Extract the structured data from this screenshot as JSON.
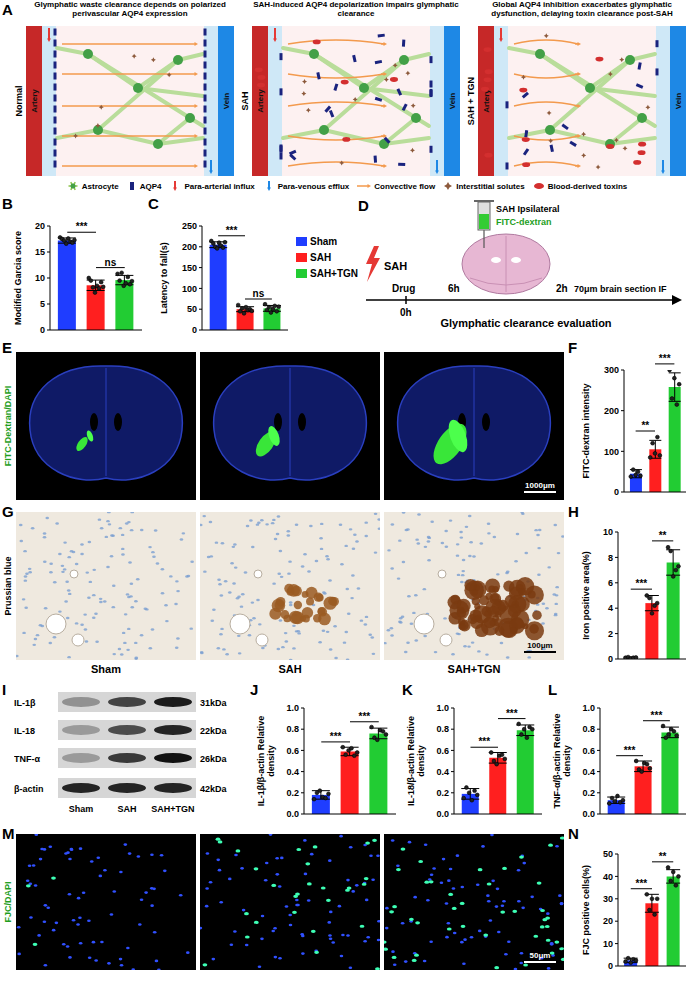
{
  "chart_data": [
    {
      "panel": "B",
      "type": "bar",
      "y_label": "Modified Garcia score",
      "categories": [
        "Sham",
        "SAH",
        "SAH+TGN"
      ],
      "colors": [
        "#1f3dff",
        "#ff1f1f",
        "#22cc33"
      ],
      "values": [
        17.2,
        8.6,
        9.6
      ],
      "errors": [
        0.5,
        1.0,
        0.9
      ],
      "points": [
        [
          17.8,
          17.5,
          17.2,
          16.6,
          17.6,
          17.0,
          16.8,
          17.3
        ],
        [
          10.0,
          9.5,
          8.2,
          7.2,
          8.5,
          8.0,
          9.2,
          8.3
        ],
        [
          10.8,
          9.5,
          11.0,
          8.5,
          9.0,
          10.2,
          8.8,
          9.4
        ]
      ],
      "significance": [
        {
          "groups": [
            "Sham",
            "SAH"
          ],
          "label": "***"
        },
        {
          "groups": [
            "SAH",
            "SAH+TGN"
          ],
          "label": "ns"
        }
      ],
      "ylim": [
        0,
        20
      ],
      "yticks": [
        0,
        5,
        10,
        15,
        20
      ],
      "tick_labels": "y"
    },
    {
      "panel": "C",
      "type": "bar",
      "y_label": "Latency to fall(s)",
      "categories": [
        "Sham",
        "SAH",
        "SAH+TGN"
      ],
      "colors": [
        "#1f3dff",
        "#ff1f1f",
        "#22cc33"
      ],
      "values": [
        205,
        50,
        52
      ],
      "errors": [
        7,
        6,
        7
      ],
      "points": [
        [
          214,
          208,
          200,
          196,
          210,
          203,
          198,
          211
        ],
        [
          60,
          45,
          52,
          40,
          55,
          48,
          50,
          46
        ],
        [
          62,
          48,
          55,
          42,
          50,
          58,
          45,
          56
        ]
      ],
      "significance": [
        {
          "groups": [
            "Sham",
            "SAH"
          ],
          "label": "***"
        },
        {
          "groups": [
            "SAH",
            "SAH+TGN"
          ],
          "label": "ns"
        }
      ],
      "ylim": [
        0,
        250
      ],
      "yticks": [
        0,
        50,
        100,
        150,
        200,
        250
      ],
      "tick_labels": "y",
      "legend": "right"
    },
    {
      "panel": "F",
      "type": "bar",
      "y_label": "FITC-dextran intensity",
      "categories": [
        "Sham",
        "SAH",
        "SAH+TGN"
      ],
      "colors": [
        "#1f3dff",
        "#ff1f1f",
        "#22cc33"
      ],
      "values": [
        45,
        105,
        258
      ],
      "errors": [
        10,
        22,
        35
      ],
      "points": [
        [
          38,
          55,
          42,
          50,
          40
        ],
        [
          85,
          120,
          95,
          135,
          90
        ],
        [
          300,
          230,
          280,
          215,
          265
        ]
      ],
      "significance": [
        {
          "groups": [
            "Sham",
            "SAH"
          ],
          "label": "**"
        },
        {
          "groups": [
            "SAH",
            "SAH+TGN"
          ],
          "label": "***"
        }
      ],
      "ylim": [
        0,
        300
      ],
      "yticks": [
        0,
        100,
        200,
        300
      ],
      "tick_labels": "y"
    },
    {
      "panel": "H",
      "type": "bar",
      "y_label": "Iron positive area(%)",
      "categories": [
        "Sham",
        "SAH",
        "SAH+TGN"
      ],
      "colors": [
        "#1f3dff",
        "#ff1f1f",
        "#22cc33"
      ],
      "values": [
        0.1,
        4.4,
        7.6
      ],
      "errors": [
        0.05,
        0.6,
        1.0
      ],
      "points": [
        [
          0.1,
          0.15,
          0.05,
          0.1,
          0.12
        ],
        [
          5.0,
          4.8,
          3.6,
          4.2,
          4.4
        ],
        [
          8.8,
          8.5,
          6.5,
          7.0,
          7.3
        ]
      ],
      "significance": [
        {
          "groups": [
            "Sham",
            "SAH"
          ],
          "label": "***"
        },
        {
          "groups": [
            "SAH",
            "SAH+TGN"
          ],
          "label": "**"
        }
      ],
      "ylim": [
        0,
        10
      ],
      "yticks": [
        0,
        2,
        4,
        6,
        8,
        10
      ],
      "tick_labels": "y"
    },
    {
      "panel": "J",
      "type": "bar",
      "y_label": "IL-1β/β-actin Relative density",
      "categories": [
        "Sham",
        "SAH",
        "SAH+TGN"
      ],
      "colors": [
        "#1f3dff",
        "#ff1f1f",
        "#22cc33"
      ],
      "values": [
        0.18,
        0.59,
        0.76
      ],
      "errors": [
        0.04,
        0.04,
        0.05
      ],
      "points": [
        [
          0.14,
          0.2,
          0.22,
          0.16,
          0.15,
          0.19
        ],
        [
          0.63,
          0.56,
          0.6,
          0.62,
          0.55,
          0.58
        ],
        [
          0.82,
          0.72,
          0.7,
          0.79,
          0.78,
          0.75
        ]
      ],
      "significance": [
        {
          "groups": [
            "Sham",
            "SAH"
          ],
          "label": "***"
        },
        {
          "groups": [
            "SAH",
            "SAH+TGN"
          ],
          "label": "***"
        }
      ],
      "ylim": [
        0,
        1
      ],
      "yticks": [
        {
          "value": 0,
          "label": "0.0"
        },
        0.2,
        0.4,
        0.6,
        0.8,
        {
          "value": 1,
          "label": "1.0"
        }
      ],
      "tick_labels": "y"
    },
    {
      "panel": "K",
      "type": "bar",
      "y_label": "IL-18/β-actin Relative density",
      "categories": [
        "Sham",
        "SAH",
        "SAH+TGN"
      ],
      "colors": [
        "#1f3dff",
        "#ff1f1f",
        "#22cc33"
      ],
      "values": [
        0.19,
        0.53,
        0.79
      ],
      "errors": [
        0.05,
        0.05,
        0.05
      ],
      "points": [
        [
          0.15,
          0.25,
          0.2,
          0.13,
          0.22,
          0.18
        ],
        [
          0.58,
          0.5,
          0.47,
          0.55,
          0.56,
          0.52
        ],
        [
          0.85,
          0.75,
          0.8,
          0.72,
          0.82,
          0.8
        ]
      ],
      "significance": [
        {
          "groups": [
            "Sham",
            "SAH"
          ],
          "label": "***"
        },
        {
          "groups": [
            "SAH",
            "SAH+TGN"
          ],
          "label": "***"
        }
      ],
      "ylim": [
        0,
        1
      ],
      "yticks": [
        {
          "value": 0,
          "label": "0.0"
        },
        0.2,
        0.4,
        0.6,
        0.8,
        {
          "value": 1,
          "label": "1.0"
        }
      ],
      "tick_labels": "y"
    },
    {
      "panel": "L",
      "type": "bar",
      "y_label": "TNF-α/β-actin Relative density",
      "categories": [
        "Sham",
        "SAH",
        "SAH+TGN"
      ],
      "colors": [
        "#1f3dff",
        "#ff1f1f",
        "#22cc33"
      ],
      "values": [
        0.13,
        0.45,
        0.77
      ],
      "errors": [
        0.03,
        0.05,
        0.05
      ],
      "points": [
        [
          0.1,
          0.15,
          0.12,
          0.17,
          0.11,
          0.13
        ],
        [
          0.5,
          0.42,
          0.4,
          0.48,
          0.47,
          0.43
        ],
        [
          0.83,
          0.72,
          0.75,
          0.8,
          0.78,
          0.74
        ]
      ],
      "significance": [
        {
          "groups": [
            "Sham",
            "SAH"
          ],
          "label": "***"
        },
        {
          "groups": [
            "SAH",
            "SAH+TGN"
          ],
          "label": "***"
        }
      ],
      "ylim": [
        0,
        1
      ],
      "yticks": [
        {
          "value": 0,
          "label": "0.0"
        },
        0.2,
        0.4,
        0.6,
        0.8,
        {
          "value": 1,
          "label": "1.0"
        }
      ],
      "tick_labels": "y"
    },
    {
      "panel": "N",
      "type": "bar",
      "y_label": "FJC positive cells(%)",
      "categories": [
        "Sham",
        "SAH",
        "SAH+TGN"
      ],
      "colors": [
        "#1f3dff",
        "#ff1f1f",
        "#22cc33"
      ],
      "values": [
        2.5,
        28,
        40
      ],
      "errors": [
        1,
        4,
        3
      ],
      "points": [
        [
          2,
          3.5,
          1.5,
          3,
          2.5
        ],
        [
          32,
          25,
          30,
          23,
          30
        ],
        [
          44,
          38,
          42,
          36,
          40
        ]
      ],
      "significance": [
        {
          "groups": [
            "Sham",
            "SAH"
          ],
          "label": "***"
        },
        {
          "groups": [
            "SAH",
            "SAH+TGN"
          ],
          "label": "**"
        }
      ],
      "ylim": [
        0,
        50
      ],
      "yticks": [
        0,
        10,
        20,
        30,
        40,
        50
      ],
      "tick_labels": "y"
    }
  ],
  "schematic": {
    "panel": "A",
    "artery": "Artery",
    "vein": "Vein",
    "panels": [
      {
        "row_label": "Normal",
        "title": "Glymphatic waste clearance depends on polarized perivascular AQP4 expression"
      },
      {
        "row_label": "SAH",
        "title": "SAH-induced AQP4 depolarization impairs glymphatic clearance"
      },
      {
        "row_label": "SAH + TGN",
        "title": "Global AQP4 inhibition exacerbates glymphatic dysfunction, delaying toxin clearance post-SAH"
      }
    ],
    "key_items": [
      "Astrocyte",
      "AQP4",
      "Para-arterial influx",
      "Para-venous efflux",
      "Convective flow",
      "Interstitial solutes",
      "Blood-derived toxins"
    ]
  },
  "timeline": {
    "panel": "D",
    "event": "SAH",
    "drug": "Drug",
    "times": [
      "0h",
      "6h",
      "2h"
    ],
    "injection_site": "SAH Ipsilateral",
    "tracer": "FITC-dextran",
    "readout": "70μm brain section IF",
    "caption": "Glymphatic clearance evaluation"
  },
  "images": [
    {
      "panel": "E",
      "side_label": "FITC-Dextran/DAPI",
      "scale_bar": "1000μm"
    },
    {
      "panel": "G",
      "side_label": "Prussian blue",
      "scale_bar": "100μm",
      "group_labels": [
        "Sham",
        "SAH",
        "SAH+TGN"
      ]
    },
    {
      "panel": "M",
      "side_label": "FJC/DAPI",
      "scale_bar": "50μm"
    }
  ],
  "blot": {
    "panel": "I",
    "rows": [
      {
        "label": "IL-1β",
        "kda": "31kDa"
      },
      {
        "label": "IL-18",
        "kda": "22kDa"
      },
      {
        "label": "TNF-α",
        "kda": "26kDa"
      },
      {
        "label": "β-actin",
        "kda": "42kDa"
      }
    ],
    "lanes": [
      "Sham",
      "SAH",
      "SAH+TGN"
    ]
  }
}
